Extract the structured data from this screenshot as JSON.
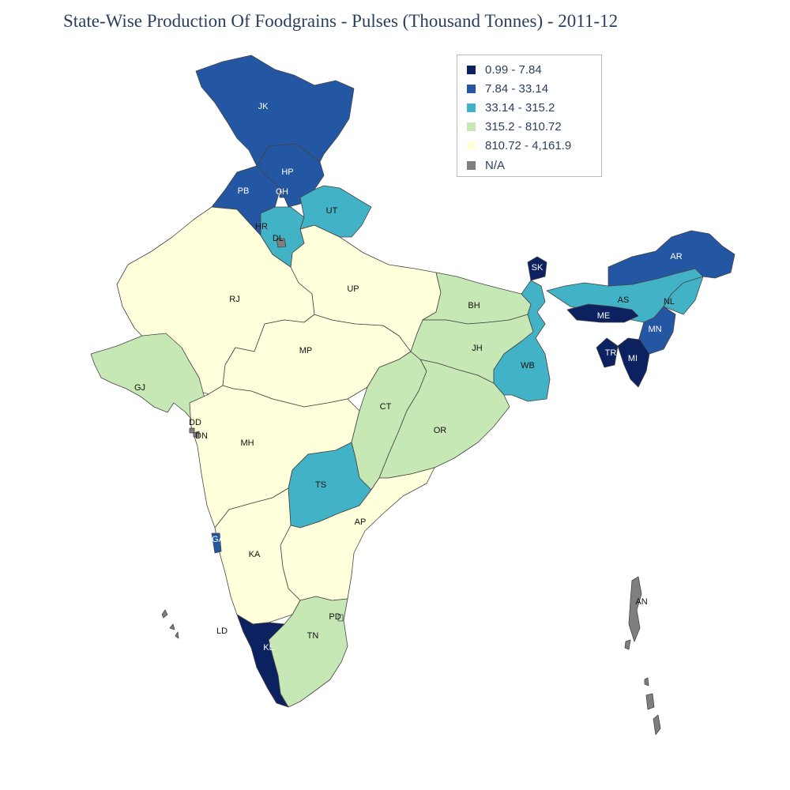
{
  "title": "State-Wise Production Of Foodgrains - Pulses (Thousand Tonnes) - 2011-12",
  "legend": [
    {
      "label": "0.99 - 7.84",
      "color": "#0b2160"
    },
    {
      "label": "7.84 - 33.14",
      "color": "#2357a3"
    },
    {
      "label": "33.14 - 315.2",
      "color": "#42b3c6"
    },
    {
      "label": "315.2 - 810.72",
      "color": "#c6e8b5"
    },
    {
      "label": "810.72 - 4,161.9",
      "color": "#ffffdb"
    },
    {
      "label": "N/A",
      "color": "#7f7f7f"
    }
  ],
  "states": [
    {
      "code": "JK",
      "bin": 1
    },
    {
      "code": "HP",
      "bin": 1
    },
    {
      "code": "PB",
      "bin": 1
    },
    {
      "code": "CH",
      "bin": 1
    },
    {
      "code": "UT",
      "bin": 2
    },
    {
      "code": "HR",
      "bin": 2
    },
    {
      "code": "DL",
      "bin": 5
    },
    {
      "code": "RJ",
      "bin": 4
    },
    {
      "code": "UP",
      "bin": 4
    },
    {
      "code": "BH",
      "bin": 3
    },
    {
      "code": "SK",
      "bin": 0
    },
    {
      "code": "AR",
      "bin": 1
    },
    {
      "code": "AS",
      "bin": 2
    },
    {
      "code": "NL",
      "bin": 2
    },
    {
      "code": "ME",
      "bin": 0
    },
    {
      "code": "MN",
      "bin": 1
    },
    {
      "code": "TR",
      "bin": 0
    },
    {
      "code": "MI",
      "bin": 0
    },
    {
      "code": "JH",
      "bin": 3
    },
    {
      "code": "WB",
      "bin": 2
    },
    {
      "code": "MP",
      "bin": 4
    },
    {
      "code": "GJ",
      "bin": 3
    },
    {
      "code": "DD",
      "bin": 5
    },
    {
      "code": "DN",
      "bin": 5
    },
    {
      "code": "MH",
      "bin": 4
    },
    {
      "code": "CT",
      "bin": 3
    },
    {
      "code": "OR",
      "bin": 3
    },
    {
      "code": "TS",
      "bin": 2
    },
    {
      "code": "AP",
      "bin": 4
    },
    {
      "code": "GA",
      "bin": 1
    },
    {
      "code": "KA",
      "bin": 4
    },
    {
      "code": "KL",
      "bin": 0
    },
    {
      "code": "TN",
      "bin": 3
    },
    {
      "code": "PD",
      "bin": 3
    },
    {
      "code": "LD",
      "bin": 5
    },
    {
      "code": "AN",
      "bin": 5
    }
  ]
}
